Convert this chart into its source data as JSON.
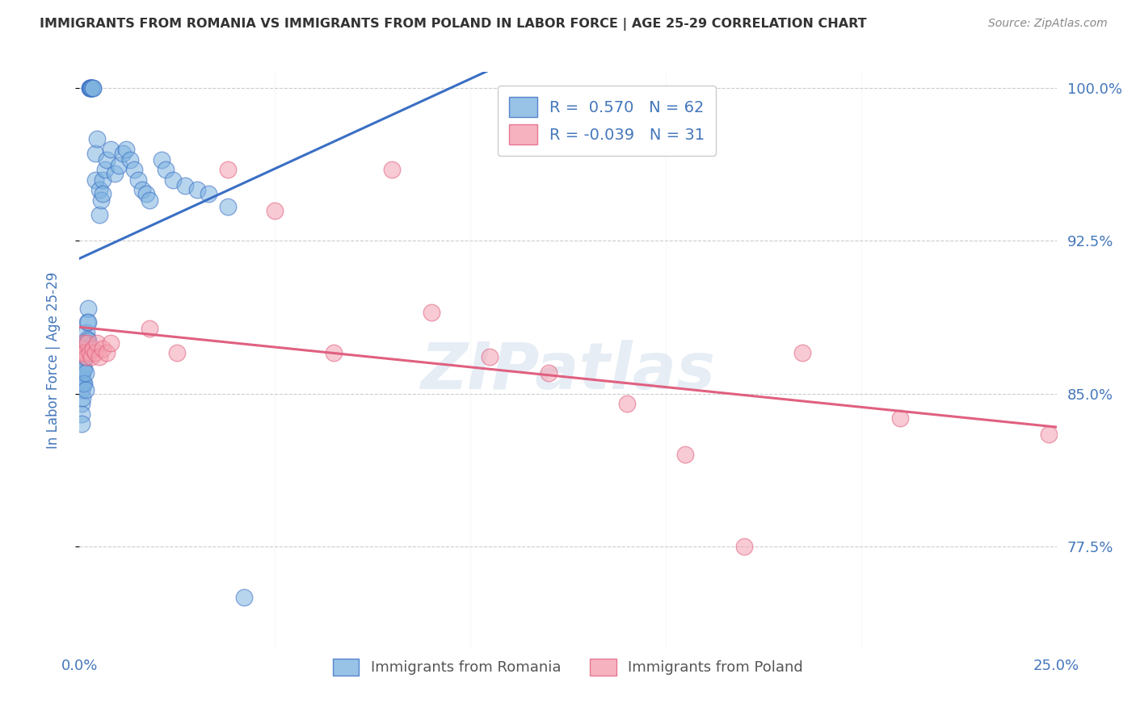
{
  "title": "IMMIGRANTS FROM ROMANIA VS IMMIGRANTS FROM POLAND IN LABOR FORCE | AGE 25-29 CORRELATION CHART",
  "source": "Source: ZipAtlas.com",
  "ylabel": "In Labor Force | Age 25-29",
  "x_min": 0.0,
  "x_max": 0.25,
  "y_min": 0.725,
  "y_max": 1.008,
  "legend_r_romania": "0.570",
  "legend_n_romania": "62",
  "legend_r_poland": "-0.039",
  "legend_n_poland": "31",
  "romania_color": "#7EB3E0",
  "poland_color": "#F4A0B0",
  "romania_line_color": "#3A6FC4",
  "poland_line_color": "#E06080",
  "romania_scatter_x": [
    0.0005,
    0.0005,
    0.0005,
    0.0005,
    0.0005,
    0.0008,
    0.0008,
    0.0008,
    0.001,
    0.001,
    0.0012,
    0.0012,
    0.0012,
    0.0015,
    0.0015,
    0.0015,
    0.0015,
    0.0018,
    0.0018,
    0.002,
    0.002,
    0.0022,
    0.0022,
    0.0022,
    0.0025,
    0.0025,
    0.0028,
    0.0028,
    0.003,
    0.003,
    0.003,
    0.0035,
    0.0035,
    0.004,
    0.004,
    0.0045,
    0.005,
    0.005,
    0.0055,
    0.006,
    0.006,
    0.0065,
    0.007,
    0.008,
    0.009,
    0.01,
    0.011,
    0.012,
    0.013,
    0.014,
    0.015,
    0.016,
    0.017,
    0.018,
    0.021,
    0.022,
    0.024,
    0.027,
    0.03,
    0.033,
    0.038,
    0.042
  ],
  "romania_scatter_y": [
    0.858,
    0.852,
    0.845,
    0.84,
    0.835,
    0.86,
    0.855,
    0.848,
    0.862,
    0.855,
    0.868,
    0.862,
    0.855,
    0.875,
    0.868,
    0.86,
    0.852,
    0.88,
    0.872,
    0.885,
    0.877,
    0.892,
    0.885,
    0.876,
    1.0,
    1.0,
    1.0,
    1.0,
    1.0,
    1.0,
    1.0,
    1.0,
    1.0,
    0.968,
    0.955,
    0.975,
    0.95,
    0.938,
    0.945,
    0.955,
    0.948,
    0.96,
    0.965,
    0.97,
    0.958,
    0.962,
    0.968,
    0.97,
    0.965,
    0.96,
    0.955,
    0.95,
    0.948,
    0.945,
    0.965,
    0.96,
    0.955,
    0.952,
    0.95,
    0.948,
    0.942,
    0.75
  ],
  "poland_scatter_x": [
    0.0005,
    0.0008,
    0.001,
    0.0012,
    0.0015,
    0.0018,
    0.002,
    0.0025,
    0.003,
    0.0035,
    0.004,
    0.0045,
    0.005,
    0.006,
    0.007,
    0.008,
    0.018,
    0.025,
    0.038,
    0.05,
    0.065,
    0.08,
    0.09,
    0.105,
    0.12,
    0.14,
    0.155,
    0.17,
    0.185,
    0.21,
    0.248
  ],
  "poland_scatter_y": [
    0.872,
    0.87,
    0.875,
    0.87,
    0.87,
    0.868,
    0.875,
    0.87,
    0.868,
    0.872,
    0.87,
    0.875,
    0.868,
    0.872,
    0.87,
    0.875,
    0.882,
    0.87,
    0.96,
    0.94,
    0.87,
    0.96,
    0.89,
    0.868,
    0.86,
    0.845,
    0.82,
    0.775,
    0.87,
    0.838,
    0.83
  ],
  "background_color": "#ffffff",
  "grid_color": "#cccccc",
  "title_color": "#333333",
  "axis_label_color": "#4477BB",
  "watermark": "ZIPatlas"
}
